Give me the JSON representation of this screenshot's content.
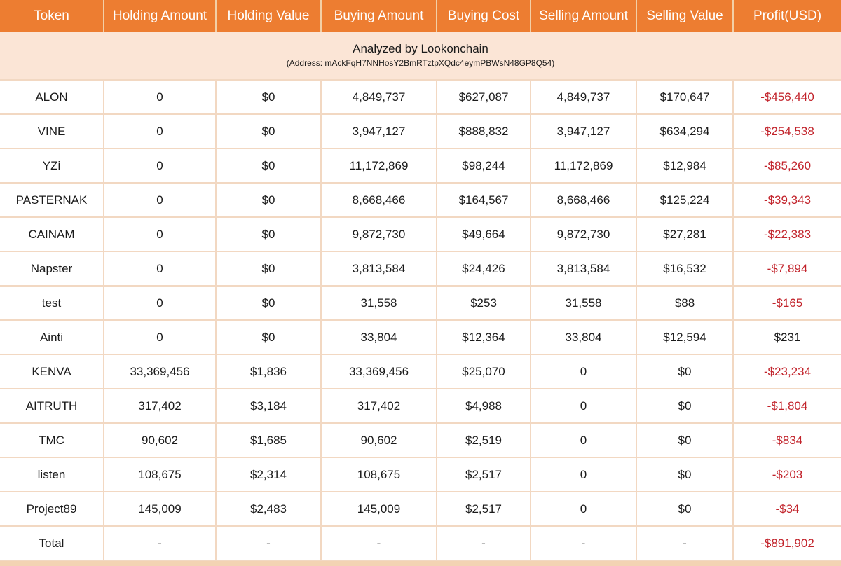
{
  "chart_data": {
    "type": "table",
    "title": "Analyzed by Lookonchain",
    "address_line": "(Address: mAckFqH7NNHosY2BmRTztpXQdc4eymPBWsN48GP8Q54)",
    "columns": [
      "Token",
      "Holding Amount",
      "Holding Value",
      "Buying Amount",
      "Buying Cost",
      "Selling Amount",
      "Selling Value",
      "Profit(USD)"
    ],
    "rows": [
      {
        "cells": [
          "ALON",
          "0",
          "$0",
          "4,849,737",
          "$627,087",
          "4,849,737",
          "$170,647",
          "-$456,440"
        ],
        "profit_negative": true
      },
      {
        "cells": [
          "VINE",
          "0",
          "$0",
          "3,947,127",
          "$888,832",
          "3,947,127",
          "$634,294",
          "-$254,538"
        ],
        "profit_negative": true
      },
      {
        "cells": [
          "YZi",
          "0",
          "$0",
          "11,172,869",
          "$98,244",
          "11,172,869",
          "$12,984",
          "-$85,260"
        ],
        "profit_negative": true
      },
      {
        "cells": [
          "PASTERNAK",
          "0",
          "$0",
          "8,668,466",
          "$164,567",
          "8,668,466",
          "$125,224",
          "-$39,343"
        ],
        "profit_negative": true
      },
      {
        "cells": [
          "CAINAM",
          "0",
          "$0",
          "9,872,730",
          "$49,664",
          "9,872,730",
          "$27,281",
          "-$22,383"
        ],
        "profit_negative": true
      },
      {
        "cells": [
          "Napster",
          "0",
          "$0",
          "3,813,584",
          "$24,426",
          "3,813,584",
          "$16,532",
          "-$7,894"
        ],
        "profit_negative": true
      },
      {
        "cells": [
          "test",
          "0",
          "$0",
          "31,558",
          "$253",
          "31,558",
          "$88",
          "-$165"
        ],
        "profit_negative": true
      },
      {
        "cells": [
          "Ainti",
          "0",
          "$0",
          "33,804",
          "$12,364",
          "33,804",
          "$12,594",
          "$231"
        ],
        "profit_negative": false
      },
      {
        "cells": [
          "KENVA",
          "33,369,456",
          "$1,836",
          "33,369,456",
          "$25,070",
          "0",
          "$0",
          "-$23,234"
        ],
        "profit_negative": true
      },
      {
        "cells": [
          "AITRUTH",
          "317,402",
          "$3,184",
          "317,402",
          "$4,988",
          "0",
          "$0",
          "-$1,804"
        ],
        "profit_negative": true
      },
      {
        "cells": [
          "TMC",
          "90,602",
          "$1,685",
          "90,602",
          "$2,519",
          "0",
          "$0",
          "-$834"
        ],
        "profit_negative": true
      },
      {
        "cells": [
          "listen",
          "108,675",
          "$2,314",
          "108,675",
          "$2,517",
          "0",
          "$0",
          "-$203"
        ],
        "profit_negative": true
      },
      {
        "cells": [
          "Project89",
          "145,009",
          "$2,483",
          "145,009",
          "$2,517",
          "0",
          "$0",
          "-$34"
        ],
        "profit_negative": true
      },
      {
        "cells": [
          "Total",
          "-",
          "-",
          "-",
          "-",
          "-",
          "-",
          "-$891,902"
        ],
        "profit_negative": true,
        "is_total": true
      }
    ]
  },
  "colors": {
    "header_bg": "#ED7D31",
    "header_text": "#FFFFFF",
    "banner_bg": "#FBE5D6",
    "grid_line": "#F2D8C2",
    "cell_bg": "#FFFFFF",
    "text": "#1B1B1B",
    "negative_profit": "#C2232B",
    "bottom_strip": "#F3D3B3"
  }
}
